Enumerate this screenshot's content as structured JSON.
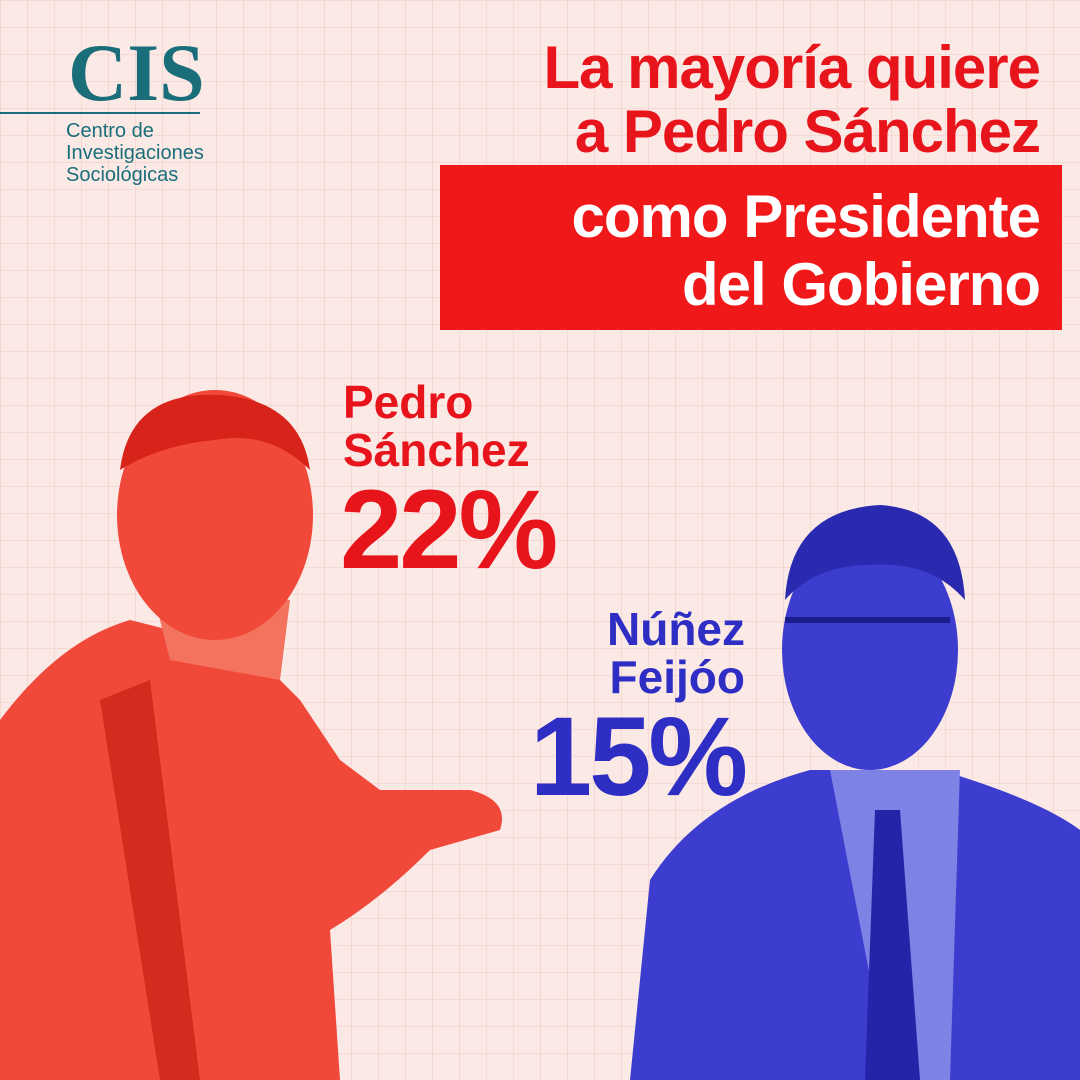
{
  "logo": {
    "acronym": "CIS",
    "lines": [
      "Centro de",
      "Investigaciones",
      "Sociológicas"
    ]
  },
  "headline": {
    "lines": [
      "La mayoría quiere",
      "a Pedro Sánchez"
    ],
    "highlight": [
      "como Presidente",
      "del Gobierno"
    ]
  },
  "candidates": [
    {
      "name": [
        "Pedro",
        "Sánchez"
      ],
      "share": "22%"
    },
    {
      "name": [
        "Núñez",
        "Feijóo"
      ],
      "share": "15%"
    }
  ]
}
